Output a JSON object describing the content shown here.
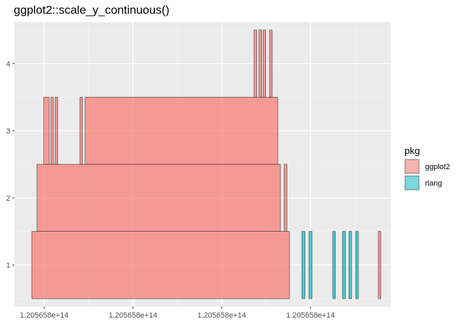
{
  "chart_data": {
    "type": "bar",
    "title": "ggplot2::scale_y_continuous()",
    "xlabel": "",
    "ylabel": "",
    "xlim": [
      0.0,
      1.0
    ],
    "ylim": [
      0.38,
      4.62
    ],
    "grid": true,
    "legend_position": "right",
    "x_tick_labels": [
      {
        "value": 0.079,
        "label": "1.205658e+14"
      },
      {
        "value": 0.315,
        "label": "1.205658e+14"
      },
      {
        "value": 0.551,
        "label": "1.205658e+14"
      },
      {
        "value": 0.787,
        "label": "1.205658e+14"
      }
    ],
    "x_minor_grid": [
      0.197,
      0.433,
      0.669,
      0.905
    ],
    "y_ticks": [
      1,
      2,
      3,
      4
    ],
    "legend": {
      "title": "pkg",
      "items": [
        {
          "key": "ggplot2",
          "label": "ggplot2",
          "fill": "#f8766d"
        },
        {
          "key": "rlang",
          "label": "rlang",
          "fill": "#00bfc4"
        }
      ]
    },
    "series": [
      {
        "name": "ggplot2",
        "segments": [
          {
            "start": 0.046,
            "end": 0.731,
            "level": 1
          },
          {
            "start": 0.967,
            "end": 0.974,
            "level": 1
          },
          {
            "start": 0.06,
            "end": 0.707,
            "level": 2
          },
          {
            "start": 0.717,
            "end": 0.724,
            "level": 2
          },
          {
            "start": 0.078,
            "end": 0.092,
            "level": 3
          },
          {
            "start": 0.097,
            "end": 0.103,
            "level": 3
          },
          {
            "start": 0.108,
            "end": 0.115,
            "level": 3
          },
          {
            "start": 0.174,
            "end": 0.181,
            "level": 3
          },
          {
            "start": 0.188,
            "end": 0.7,
            "level": 3
          },
          {
            "start": 0.637,
            "end": 0.644,
            "level": 4
          },
          {
            "start": 0.65,
            "end": 0.657,
            "level": 4
          },
          {
            "start": 0.661,
            "end": 0.668,
            "level": 4
          },
          {
            "start": 0.678,
            "end": 0.685,
            "level": 4
          }
        ]
      },
      {
        "name": "rlang",
        "segments": [
          {
            "start": 0.764,
            "end": 0.772,
            "level": 1
          },
          {
            "start": 0.783,
            "end": 0.791,
            "level": 1
          },
          {
            "start": 0.846,
            "end": 0.853,
            "level": 1
          },
          {
            "start": 0.872,
            "end": 0.88,
            "level": 1
          },
          {
            "start": 0.889,
            "end": 0.896,
            "level": 1
          },
          {
            "start": 0.907,
            "end": 0.914,
            "level": 1
          }
        ]
      }
    ]
  }
}
